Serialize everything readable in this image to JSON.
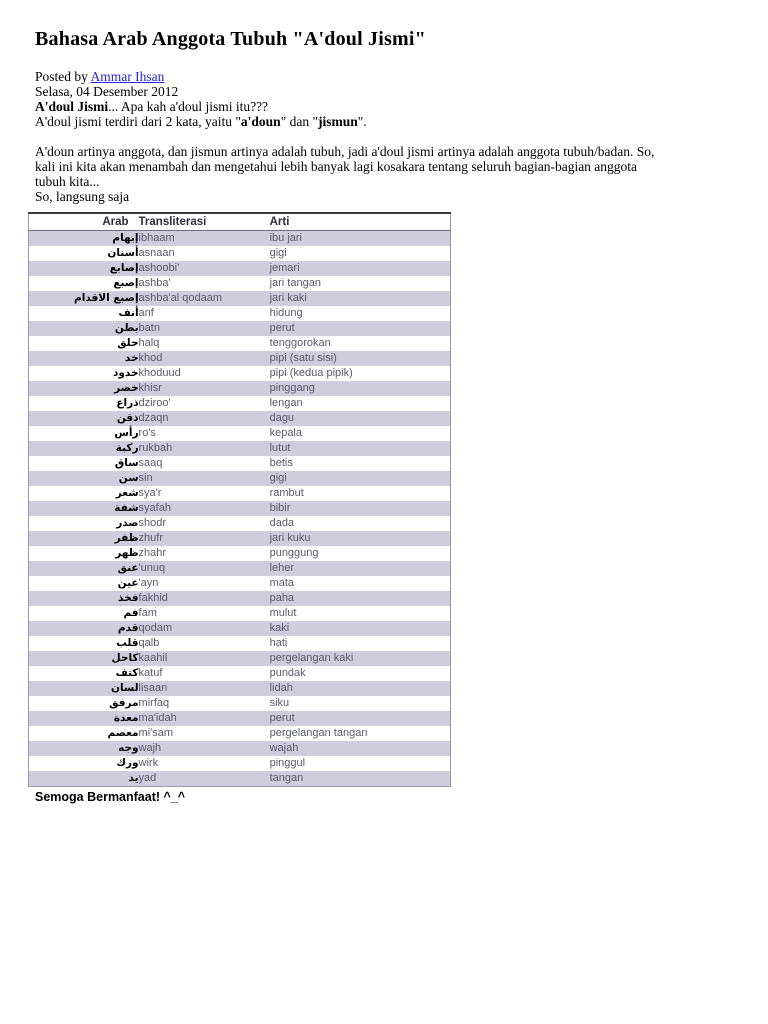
{
  "page": {
    "title": "Bahasa Arab Anggota Tubuh \"A'doul Jismi\"",
    "meta": {
      "posted_by": [
        {
          "t": "Posted by ",
          "b": false
        },
        {
          "t": "Ammar Ihsan",
          "b": false,
          "link": true
        }
      ],
      "date": "Selasa, 04 Desember 2012"
    },
    "intro": {
      "line1": [
        {
          "t": "A'doul Jismi",
          "b": true
        },
        {
          "t": "... Apa kah a'doul jismi itu???",
          "b": false
        }
      ],
      "line2": [
        {
          "t": "A'doul jismi terdiri dari 2 kata, yaitu \"",
          "b": false
        },
        {
          "t": "a'doun",
          "b": true
        },
        {
          "t": "\" dan \"",
          "b": false
        },
        {
          "t": "jismun",
          "b": true
        },
        {
          "t": "\".",
          "b": false
        }
      ]
    },
    "paragraph_lines": [
      "A'doun artinya anggota, dan jismun artinya adalah tubuh, jadi a'doul jismi artinya adalah anggota tubuh/badan. So,",
      "kali ini kita akan menambah dan mengetahui lebih banyak lagi kosakara tentang seluruh bagian-bagian anggota",
      "tubuh kita..."
    ],
    "closing": "So, langsung saja",
    "footer": "Semoga Bermanfaat! ^_^"
  },
  "table": {
    "headers": [
      "Arab",
      "Transliterasi",
      "Arti"
    ],
    "rows": [
      {
        "arab": "إبهام",
        "translit": "ibhaam",
        "arti": "ibu jari"
      },
      {
        "arab": "أسنان",
        "translit": "asnaan",
        "arti": "gigi"
      },
      {
        "arab": "إصابع",
        "translit": "ashoobi'",
        "arti": "jemari"
      },
      {
        "arab": "إصبع",
        "translit": "ashba'",
        "arti": "jari tangan"
      },
      {
        "arab": "إصبع الاقدام",
        "translit": "ashba'al qodaam",
        "arti": "jari kaki"
      },
      {
        "arab": "أنف",
        "translit": "anf",
        "arti": "hidung"
      },
      {
        "arab": "بطن",
        "translit": "batn",
        "arti": "perut"
      },
      {
        "arab": "حلق",
        "translit": "halq",
        "arti": "tenggorokan"
      },
      {
        "arab": "خد",
        "translit": "khod",
        "arti": "pipi (satu sisi)"
      },
      {
        "arab": "خدود",
        "translit": "khoduud",
        "arti": "pipi (kedua pipik)"
      },
      {
        "arab": "خصر",
        "translit": "khisr",
        "arti": "pinggang"
      },
      {
        "arab": "ذراع",
        "translit": "dziroo'",
        "arti": "lengan"
      },
      {
        "arab": "ذقن",
        "translit": "dzaqn",
        "arti": "dagu"
      },
      {
        "arab": "رأس",
        "translit": "ro's",
        "arti": "kepala"
      },
      {
        "arab": "ركبة",
        "translit": "rukbah",
        "arti": "lutut"
      },
      {
        "arab": "ساق",
        "translit": "saaq",
        "arti": "betis"
      },
      {
        "arab": "سن",
        "translit": "sin",
        "arti": "gigi"
      },
      {
        "arab": "شعر",
        "translit": "sya'r",
        "arti": "rambut"
      },
      {
        "arab": "شفة",
        "translit": "syafah",
        "arti": "bibir"
      },
      {
        "arab": "صدر",
        "translit": "shodr",
        "arti": "dada"
      },
      {
        "arab": "ظفر",
        "translit": "zhufr",
        "arti": "jari kuku"
      },
      {
        "arab": "ظهر",
        "translit": "zhahr",
        "arti": "punggung"
      },
      {
        "arab": "عنق",
        "translit": "'unuq",
        "arti": "leher"
      },
      {
        "arab": "عين",
        "translit": "'ayn",
        "arti": "mata"
      },
      {
        "arab": "فخذ",
        "translit": "fakhid",
        "arti": "paha"
      },
      {
        "arab": "فم",
        "translit": "fam",
        "arti": "mulut"
      },
      {
        "arab": "قدم",
        "translit": "qodam",
        "arti": "kaki"
      },
      {
        "arab": "قلب",
        "translit": "qalb",
        "arti": "hati"
      },
      {
        "arab": "كاحل",
        "translit": "kaahil",
        "arti": "pergelangan kaki"
      },
      {
        "arab": "كتف",
        "translit": "katuf",
        "arti": "pundak"
      },
      {
        "arab": "لسان",
        "translit": "lisaan",
        "arti": "lidah"
      },
      {
        "arab": "مرفق",
        "translit": "mirfaq",
        "arti": "siku"
      },
      {
        "arab": "معدة",
        "translit": "ma'idah",
        "arti": "perut"
      },
      {
        "arab": "معصم",
        "translit": "mi'sam",
        "arti": "pergelangan tangan"
      },
      {
        "arab": "وجه",
        "translit": "wajh",
        "arti": "wajah"
      },
      {
        "arab": "ورك",
        "translit": "wirk",
        "arti": "pinggul"
      },
      {
        "arab": "يد",
        "translit": "yad",
        "arti": "tangan"
      }
    ]
  },
  "colors": {
    "row_shade": "#cfccde",
    "link_blue": "#2626cc",
    "table_text": "#5a5a6c"
  }
}
